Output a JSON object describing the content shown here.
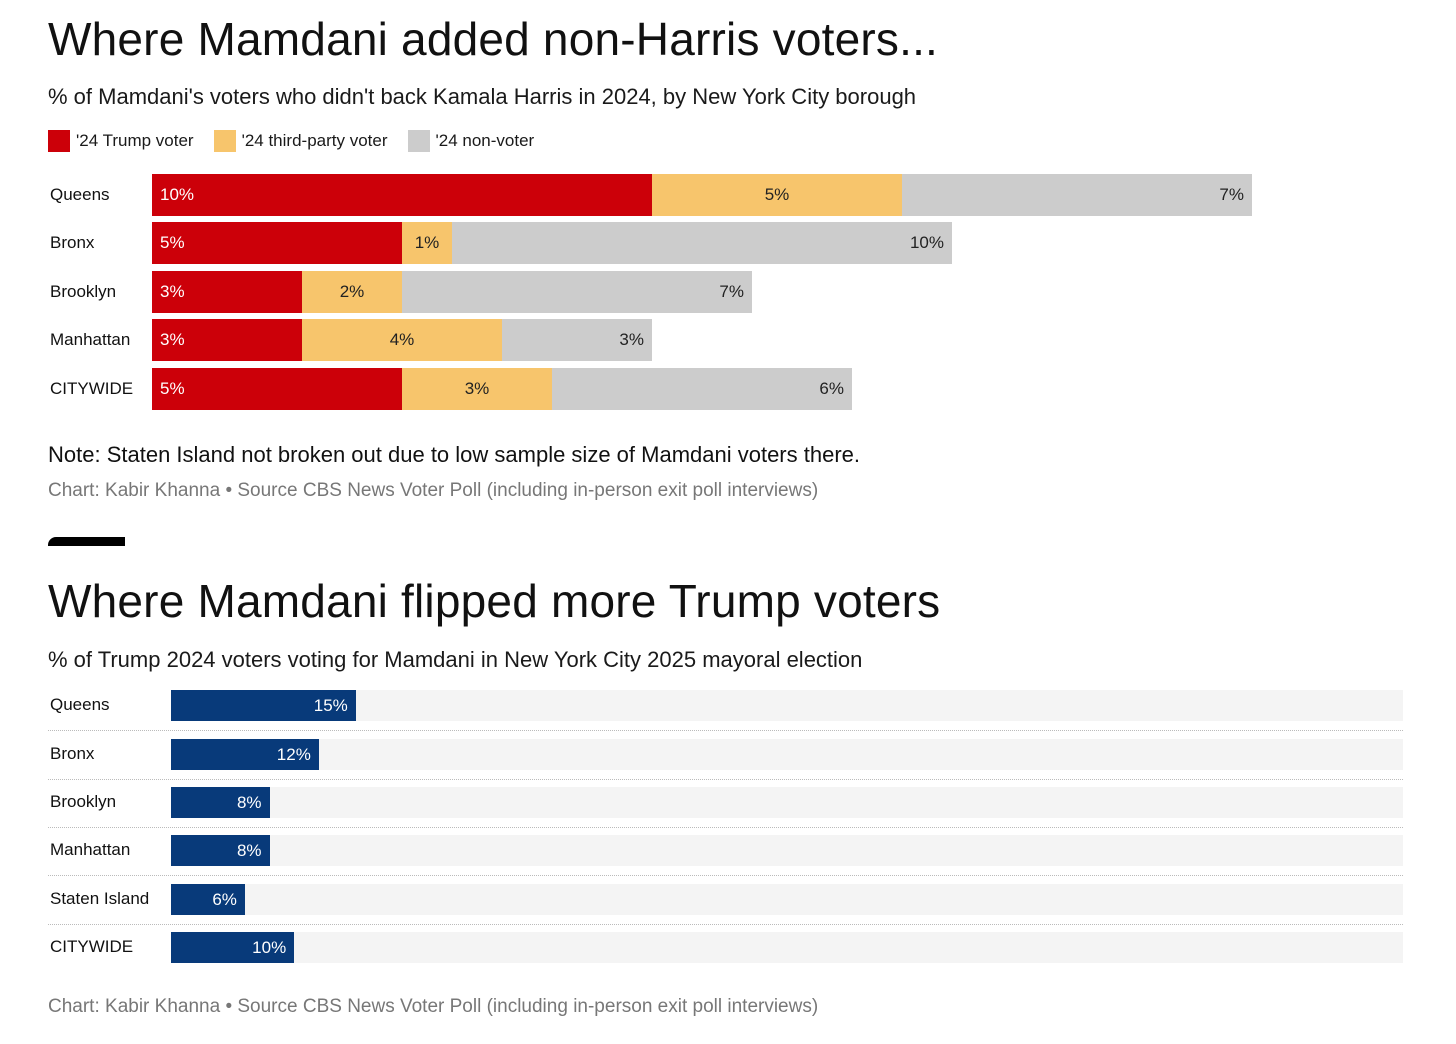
{
  "chart_data": [
    {
      "type": "bar",
      "orientation": "horizontal",
      "stacked": true,
      "title": "Where Mamdani added non-Harris voters...",
      "subtitle": "% of Mamdani's voters who didn't back Kamala Harris in 2024, by New York City borough",
      "categories": [
        "Queens",
        "Bronx",
        "Brooklyn",
        "Manhattan",
        "CITYWIDE"
      ],
      "series": [
        {
          "name": "'24 Trump voter",
          "color": "#cc0009",
          "values": [
            10,
            5,
            3,
            3,
            5
          ]
        },
        {
          "name": "'24 third-party voter",
          "color": "#f7c56c",
          "values": [
            5,
            1,
            2,
            4,
            3
          ]
        },
        {
          "name": "'24 non-voter",
          "color": "#cccccc",
          "values": [
            7,
            10,
            7,
            3,
            6
          ]
        }
      ],
      "legend_position": "top-left",
      "note": "Note: Staten Island not broken out due to low sample size of Mamdani voters there.",
      "credit": "Chart: Kabir Khanna • Source CBS News Voter Poll (including in-person exit poll interviews)"
    },
    {
      "type": "bar",
      "orientation": "horizontal",
      "title": "Where Mamdani flipped more Trump voters",
      "subtitle": "% of Trump 2024 voters voting for Mamdani in New York City 2025 mayoral election",
      "categories": [
        "Queens",
        "Bronx",
        "Brooklyn",
        "Manhattan",
        "Staten Island",
        "CITYWIDE"
      ],
      "values": [
        15,
        12,
        8,
        8,
        6,
        10
      ],
      "color": "#083a7a",
      "xlim": [
        0,
        100
      ],
      "credit": "Chart: Kabir Khanna • Source CBS News Voter Poll (including in-person exit poll interviews)"
    }
  ]
}
